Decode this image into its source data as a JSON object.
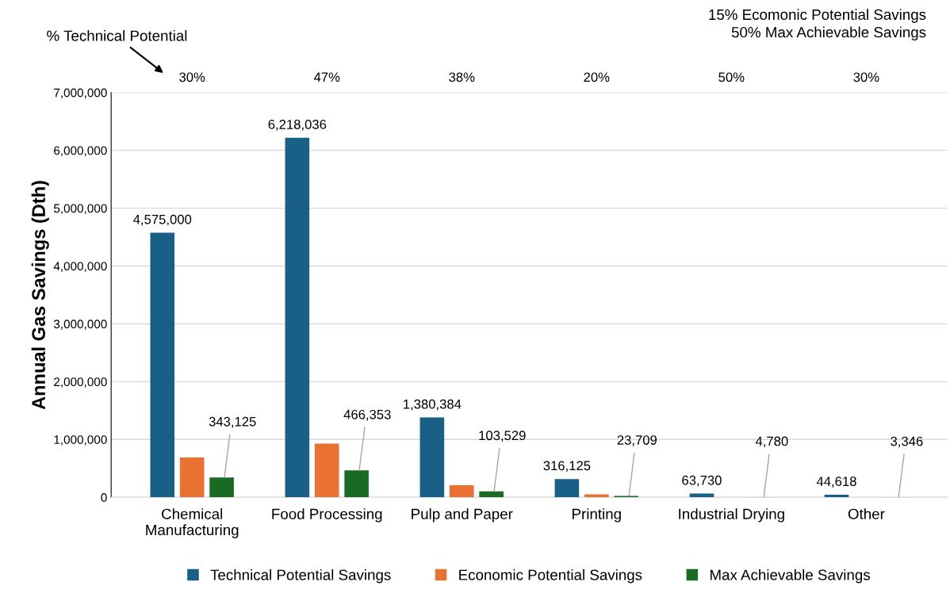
{
  "chart_data": {
    "type": "bar",
    "ylabel": "Annual Gas Savings (Dth)",
    "categories": [
      "Chemical\nManufacturing",
      "Food Processing",
      "Pulp and Paper",
      "Printing",
      "Industrial Drying",
      "Other"
    ],
    "series": [
      {
        "name": "Technical Potential Savings",
        "color": "#1a5f85",
        "values": [
          4575000,
          6218036,
          1380384,
          316125,
          63730,
          44618
        ],
        "value_labels": [
          "4,575,000",
          "6,218,036",
          "1,380,384",
          "316,125",
          "63,730",
          "44,618"
        ]
      },
      {
        "name": "Economic Potential Savings",
        "color": "#e97132",
        "values": [
          690000,
          930000,
          210000,
          50000,
          null,
          null
        ]
      },
      {
        "name": "Max Achievable Savings",
        "color": "#196b24",
        "values": [
          343125,
          466353,
          103529,
          23709,
          4780,
          3346
        ],
        "value_labels": [
          "343,125",
          "466,353",
          "103,529",
          "23,709",
          "4,780",
          "3,346"
        ]
      }
    ],
    "ylim": [
      0,
      7000000
    ],
    "yticks": [
      {
        "value": 0,
        "label": "0"
      },
      {
        "value": 1000000,
        "label": "1,000,000"
      },
      {
        "value": 2000000,
        "label": "2,000,000"
      },
      {
        "value": 3000000,
        "label": "3,000,000"
      },
      {
        "value": 4000000,
        "label": "4,000,000"
      },
      {
        "value": 5000000,
        "label": "5,000,000"
      },
      {
        "value": 6000000,
        "label": "6,000,000"
      },
      {
        "value": 7000000,
        "label": "7,000,000"
      }
    ],
    "grid": "y",
    "legend": "bottom",
    "annotations": [
      "% Technical Potential",
      "15% Ecomonic Potential Savings\n50% Max Achievable Savings",
      "30%",
      "47%",
      "38%",
      "20%",
      "50%",
      "30%"
    ]
  }
}
